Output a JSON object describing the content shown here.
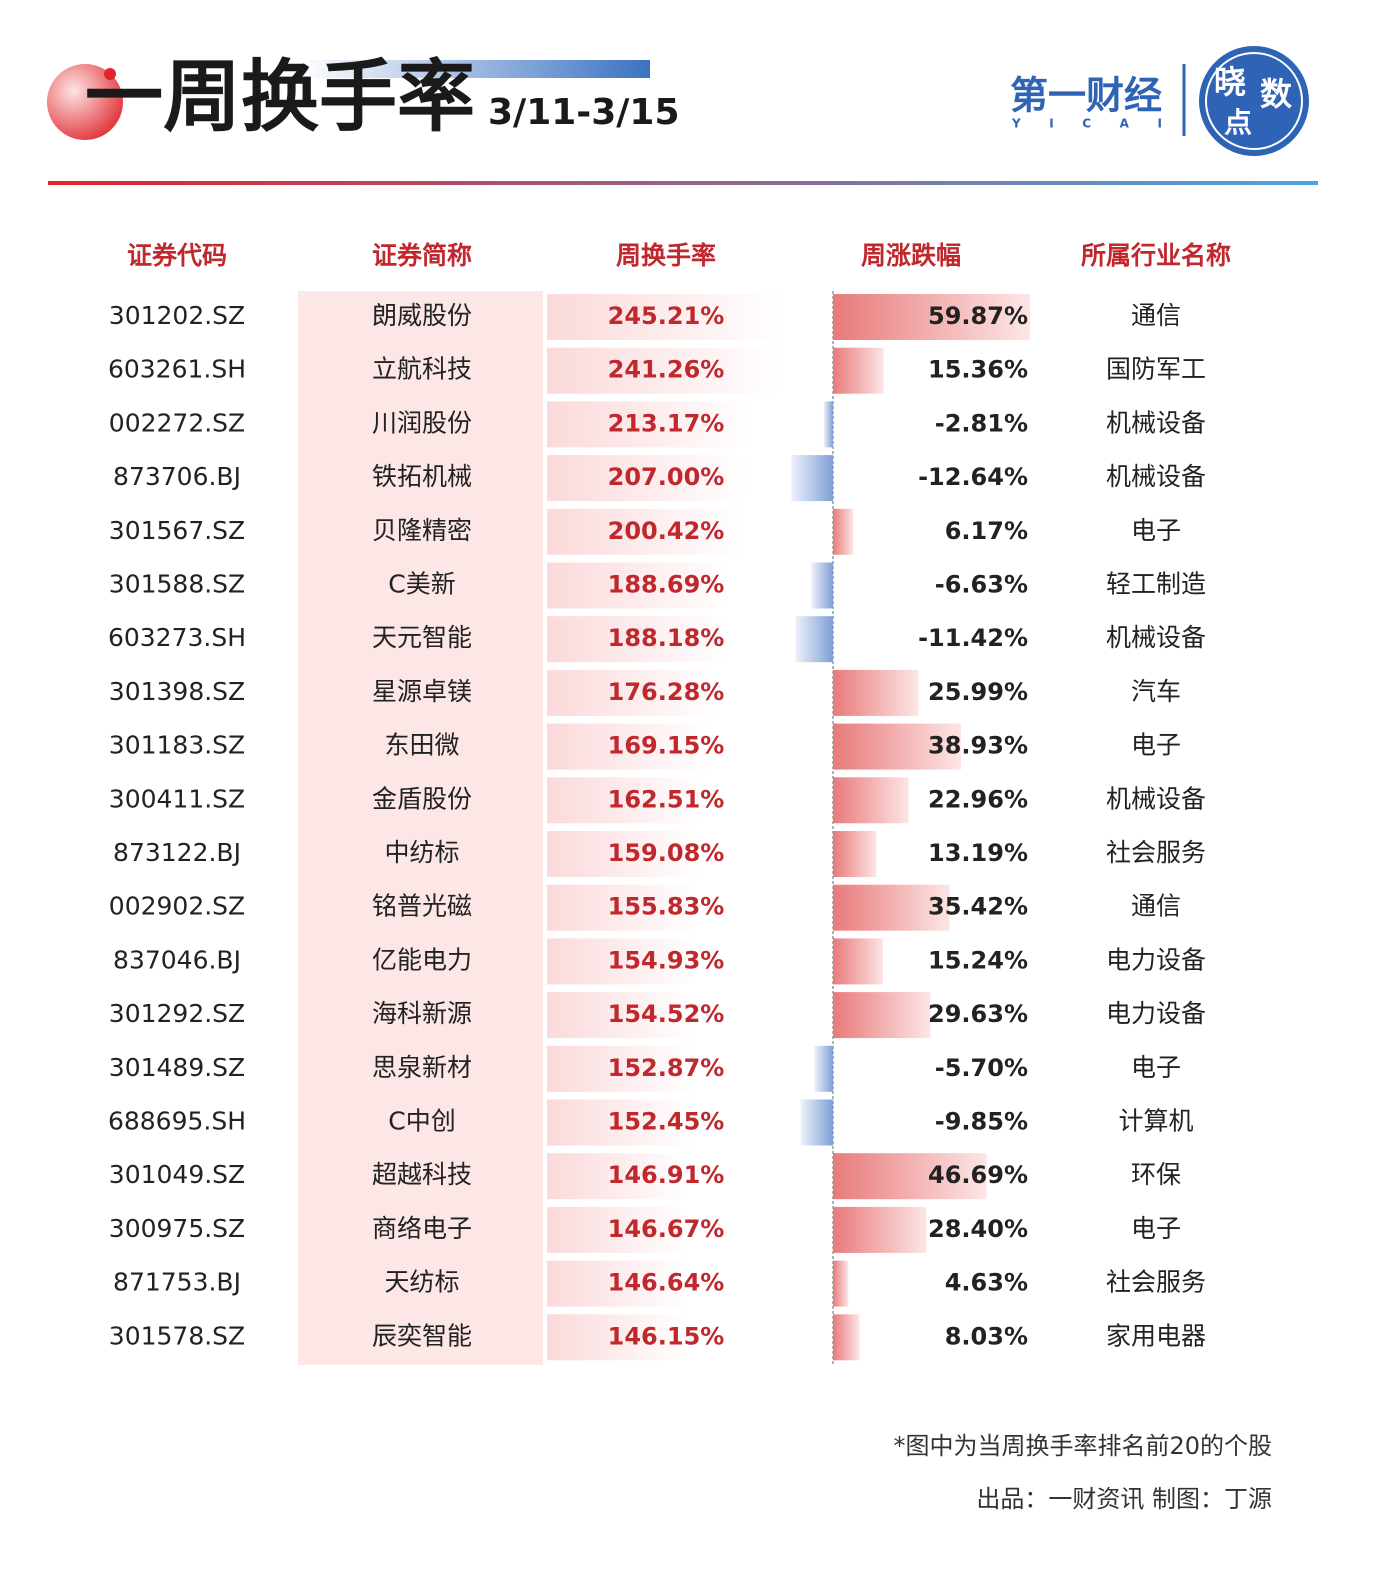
{
  "header": {
    "title": "一周换手率",
    "date_range": "3/11-3/15",
    "brand": "第一财经",
    "brand_latin": "Y I C A I",
    "badge": [
      "晓",
      "数",
      "点"
    ]
  },
  "table": {
    "columns": [
      "证券代码",
      "证券简称",
      "周换手率",
      "周涨跌幅",
      "所属行业名称"
    ],
    "rows": [
      {
        "code": "301202.SZ",
        "name": "朗威股份",
        "turnover": 245.21,
        "turnover_label": "245.21%",
        "change": 59.87,
        "change_label": "59.87%",
        "industry": "通信"
      },
      {
        "code": "603261.SH",
        "name": "立航科技",
        "turnover": 241.26,
        "turnover_label": "241.26%",
        "change": 15.36,
        "change_label": "15.36%",
        "industry": "国防军工"
      },
      {
        "code": "002272.SZ",
        "name": "川润股份",
        "turnover": 213.17,
        "turnover_label": "213.17%",
        "change": -2.81,
        "change_label": "-2.81%",
        "industry": "机械设备"
      },
      {
        "code": "873706.BJ",
        "name": "铁拓机械",
        "turnover": 207,
        "turnover_label": "207.00%",
        "change": -12.64,
        "change_label": "-12.64%",
        "industry": "机械设备"
      },
      {
        "code": "301567.SZ",
        "name": "贝隆精密",
        "turnover": 200.42,
        "turnover_label": "200.42%",
        "change": 6.17,
        "change_label": "6.17%",
        "industry": "电子"
      },
      {
        "code": "301588.SZ",
        "name": "C美新",
        "turnover": 188.69,
        "turnover_label": "188.69%",
        "change": -6.63,
        "change_label": "-6.63%",
        "industry": "轻工制造"
      },
      {
        "code": "603273.SH",
        "name": "天元智能",
        "turnover": 188.18,
        "turnover_label": "188.18%",
        "change": -11.42,
        "change_label": "-11.42%",
        "industry": "机械设备"
      },
      {
        "code": "301398.SZ",
        "name": "星源卓镁",
        "turnover": 176.28,
        "turnover_label": "176.28%",
        "change": 25.99,
        "change_label": "25.99%",
        "industry": "汽车"
      },
      {
        "code": "301183.SZ",
        "name": "东田微",
        "turnover": 169.15,
        "turnover_label": "169.15%",
        "change": 38.93,
        "change_label": "38.93%",
        "industry": "电子"
      },
      {
        "code": "300411.SZ",
        "name": "金盾股份",
        "turnover": 162.51,
        "turnover_label": "162.51%",
        "change": 22.96,
        "change_label": "22.96%",
        "industry": "机械设备"
      },
      {
        "code": "873122.BJ",
        "name": "中纺标",
        "turnover": 159.08,
        "turnover_label": "159.08%",
        "change": 13.19,
        "change_label": "13.19%",
        "industry": "社会服务"
      },
      {
        "code": "002902.SZ",
        "name": "铭普光磁",
        "turnover": 155.83,
        "turnover_label": "155.83%",
        "change": 35.42,
        "change_label": "35.42%",
        "industry": "通信"
      },
      {
        "code": "837046.BJ",
        "name": "亿能电力",
        "turnover": 154.93,
        "turnover_label": "154.93%",
        "change": 15.24,
        "change_label": "15.24%",
        "industry": "电力设备"
      },
      {
        "code": "301292.SZ",
        "name": "海科新源",
        "turnover": 154.52,
        "turnover_label": "154.52%",
        "change": 29.63,
        "change_label": "29.63%",
        "industry": "电力设备"
      },
      {
        "code": "301489.SZ",
        "name": "思泉新材",
        "turnover": 152.87,
        "turnover_label": "152.87%",
        "change": -5.7,
        "change_label": "-5.70%",
        "industry": "电子"
      },
      {
        "code": "688695.SH",
        "name": "C中创",
        "turnover": 152.45,
        "turnover_label": "152.45%",
        "change": -9.85,
        "change_label": "-9.85%",
        "industry": "计算机"
      },
      {
        "code": "301049.SZ",
        "name": "超越科技",
        "turnover": 146.91,
        "turnover_label": "146.91%",
        "change": 46.69,
        "change_label": "46.69%",
        "industry": "环保"
      },
      {
        "code": "300975.SZ",
        "name": "商络电子",
        "turnover": 146.67,
        "turnover_label": "146.67%",
        "change": 28.4,
        "change_label": "28.40%",
        "industry": "电子"
      },
      {
        "code": "871753.BJ",
        "name": "天纺标",
        "turnover": 146.64,
        "turnover_label": "146.64%",
        "change": 4.63,
        "change_label": "4.63%",
        "industry": "社会服务"
      },
      {
        "code": "301578.SZ",
        "name": "辰奕智能",
        "turnover": 146.15,
        "turnover_label": "146.15%",
        "change": 8.03,
        "change_label": "8.03%",
        "industry": "家用电器"
      }
    ]
  },
  "footer": {
    "note": "*图中为当周换手率排名前20的个股",
    "credit": "出品：一财资讯  制图：丁源"
  }
}
